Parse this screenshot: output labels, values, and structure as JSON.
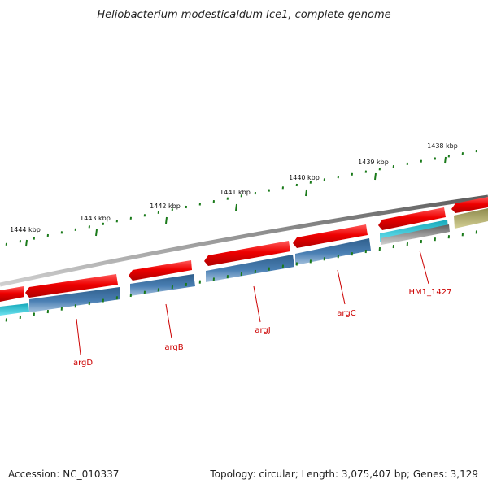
{
  "title": "Heliobacterium modesticaldum Ice1, complete genome",
  "ruler_ticks": [
    "1444 kbp",
    "1443 kbp",
    "1442 kbp",
    "1441 kbp",
    "1440 kbp",
    "1439 kbp",
    "1438 kbp"
  ],
  "genes": [
    "argD",
    "argB",
    "argJ",
    "argC",
    "HM1_1427"
  ],
  "footer": {
    "accession": "Accession: NC_010337",
    "topology": "Topology: circular; Length: 3,075,407 bp; Genes: 3,129"
  },
  "colors": {
    "cds_forward": "#ee0000",
    "cds_blue": "#3f74a6",
    "cds_cyan": "#22c6d8",
    "other_feature": "#b9b46a",
    "backbone": "#7f7f7f",
    "ticks": "#1a7a1a",
    "labels": "#cc0000"
  }
}
